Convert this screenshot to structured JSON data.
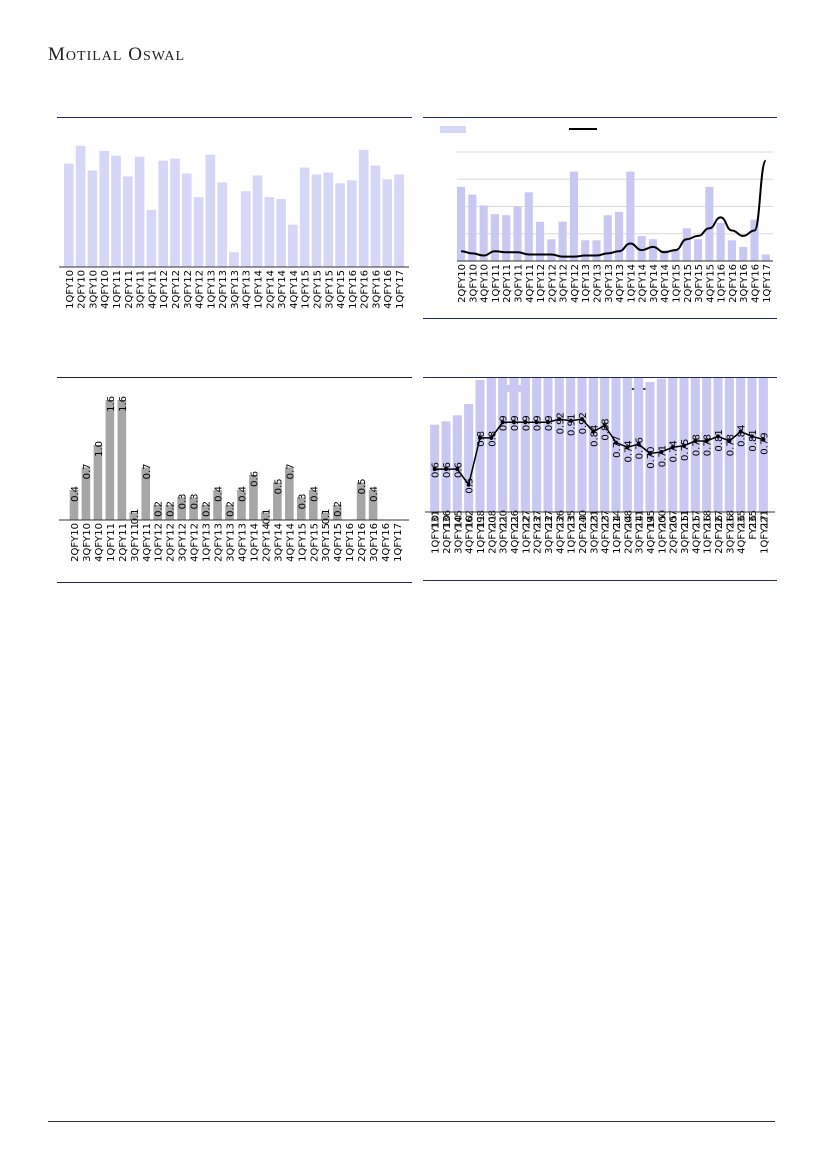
{
  "header": {
    "brand_first": "M",
    "brand_rest1": "OTILAL",
    "brand_first2": "O",
    "brand_rest2": "SWAL"
  },
  "colors": {
    "bar_light": "#d6d6f7",
    "bar_medium": "#c8c8f2",
    "bar_gray": "#a6a6a6",
    "line": "#000000",
    "rule": "#1f2a63"
  },
  "chart_data": [
    {
      "type": "bar",
      "id": "chart1",
      "categories": [
        "1QFY10",
        "2QFY10",
        "3QFY10",
        "4QFY10",
        "1QFY11",
        "2QFY11",
        "3QFY11",
        "4QFY11",
        "1QFY12",
        "2QFY12",
        "3QFY12",
        "4QFY12",
        "1QFY13",
        "2QFY13",
        "3QFY13",
        "4QFY13",
        "1QFY14",
        "2QFY14",
        "3QFY14",
        "4QFY14",
        "1QFY15",
        "2QFY15",
        "3QFY15",
        "4QFY15",
        "1QFY16",
        "2QFY16",
        "3QFY16",
        "4QFY16",
        "1QFY17"
      ],
      "values": [
        105,
        123,
        98,
        118,
        113,
        92,
        112,
        58,
        108,
        110,
        95,
        71,
        114,
        86,
        15,
        77,
        93,
        71,
        69,
        43,
        101,
        94,
        96,
        85,
        88,
        119,
        103,
        89,
        94
      ],
      "ylim": [
        0,
        130
      ]
    },
    {
      "type": "bar+line",
      "id": "chart2",
      "categories": [
        "2QFY10",
        "3QFY10",
        "4QFY10",
        "1QFY11",
        "2QFY11",
        "3QFY11",
        "4QFY11",
        "1QFY12",
        "2QFY12",
        "3QFY12",
        "4QFY12",
        "1QFY13",
        "2QFY13",
        "3QFY13",
        "4QFY13",
        "1QFY14",
        "2QFY14",
        "3QFY14",
        "4QFY14",
        "1QFY15",
        "2QFY15",
        "3QFY15",
        "4QFY15",
        "1QFY16",
        "2QFY16",
        "3QFY16",
        "4QFY16",
        "1QFY17"
      ],
      "bars": [
        68,
        61,
        51,
        43,
        42,
        50,
        63,
        36,
        20,
        36,
        82,
        19,
        19,
        42,
        45,
        82,
        23,
        20,
        10,
        10,
        30,
        20,
        68,
        35,
        19,
        13,
        38,
        6
      ],
      "line": [
        9,
        7,
        5,
        9,
        8,
        8,
        6,
        6,
        6,
        4,
        4,
        5,
        5,
        7,
        9,
        16,
        10,
        13,
        8,
        10,
        20,
        23,
        30,
        40,
        28,
        23,
        28,
        92
      ],
      "ylim": [
        0,
        100
      ],
      "gridlines": [
        25,
        50,
        75,
        100
      ]
    },
    {
      "type": "bar",
      "id": "chart3",
      "categories": [
        "2QFY10",
        "3QFY10",
        "4QFY10",
        "1QFY11",
        "2QFY11",
        "3QFY11",
        "4QFY11",
        "1QFY12",
        "2QFY12",
        "3QFY12",
        "4QFY12",
        "1QFY13",
        "2QFY13",
        "3QFY13",
        "4QFY13",
        "1QFY14",
        "2QFY14",
        "3QFY14",
        "4QFY14",
        "1QFY15",
        "2QFY15",
        "3QFY15",
        "4QFY15",
        "1QFY16",
        "2QFY16",
        "3QFY16",
        "4QFY16",
        "1QFY17"
      ],
      "values": [
        0.4,
        0.7,
        1.0,
        1.6,
        1.6,
        0.1,
        0.7,
        0.2,
        0.2,
        0.3,
        0.3,
        0.2,
        0.4,
        0.2,
        0.4,
        0.6,
        0.1,
        0.5,
        0.7,
        0.3,
        0.4,
        0.1,
        0.2,
        null,
        0.5,
        0.4,
        null,
        null
      ],
      "labels": [
        "0.4",
        "0.7",
        "1.0",
        "1.6",
        "1.6",
        "0.1",
        "0.7",
        "0.2",
        "0.2",
        "0.3",
        "0.3",
        "0.2",
        "0.4",
        "0.2",
        "0.4",
        "0.6",
        "0.1",
        "0.5",
        "0.7",
        "0.3",
        "0.4",
        "0.1",
        "0.2",
        "",
        "0.5",
        "0.4",
        "",
        ""
      ],
      "ylim": [
        0,
        1.6
      ]
    },
    {
      "type": "bar+line",
      "id": "chart4",
      "categories": [
        "1QFY10",
        "2QFY10",
        "3QFY10",
        "4QFY10",
        "1QFY11",
        "2QFY11",
        "3QFY11",
        "4QFY11",
        "1QFY12",
        "2QFY12",
        "3QFY12",
        "4QFY12",
        "1QFY13",
        "2QFY13",
        "3QFY13",
        "4QFY13",
        "1QFY14",
        "2QFY14",
        "3QFY14",
        "4QFY14",
        "1QFY15",
        "2QFY15",
        "3QFY15",
        "4QFY15",
        "1QFY16",
        "2QFY16",
        "3QFY16",
        "4QFY16",
        "FY16",
        "1QFY17"
      ],
      "bars": [
        131,
        136,
        145,
        162,
        198,
        208,
        220,
        226,
        227,
        237,
        237,
        236,
        235,
        240,
        221,
        227,
        214,
        208,
        211,
        195,
        200,
        207,
        211,
        217,
        218,
        227,
        218,
        235,
        235,
        221
      ],
      "line": [
        0.6,
        0.6,
        0.6,
        0.5,
        0.8,
        0.8,
        0.9,
        0.9,
        0.9,
        0.9,
        0.9,
        0.92,
        0.91,
        0.92,
        0.84,
        0.88,
        0.77,
        0.74,
        0.76,
        0.7,
        0.71,
        0.74,
        0.75,
        0.78,
        0.78,
        0.81,
        0.78,
        0.84,
        0.81,
        0.79
      ],
      "line_labels": [
        "0.6",
        "0.6",
        "0.6",
        "0.5",
        "0.8",
        "0.8",
        "0.9",
        "0.9",
        "0.9",
        "0.9",
        "0.9",
        "0.92",
        "0.91",
        "0.92",
        "0.84",
        "0.88",
        "0.77",
        "0.74",
        "0.76",
        "0.70",
        "0.71",
        "0.74",
        "0.75",
        "0.78",
        "0.78",
        "0.81",
        "0.78",
        "0.84",
        "0.81",
        "0.79"
      ],
      "ylim_bars": [
        0,
        300
      ],
      "ylim_line": [
        0.3,
        1.1
      ]
    }
  ]
}
